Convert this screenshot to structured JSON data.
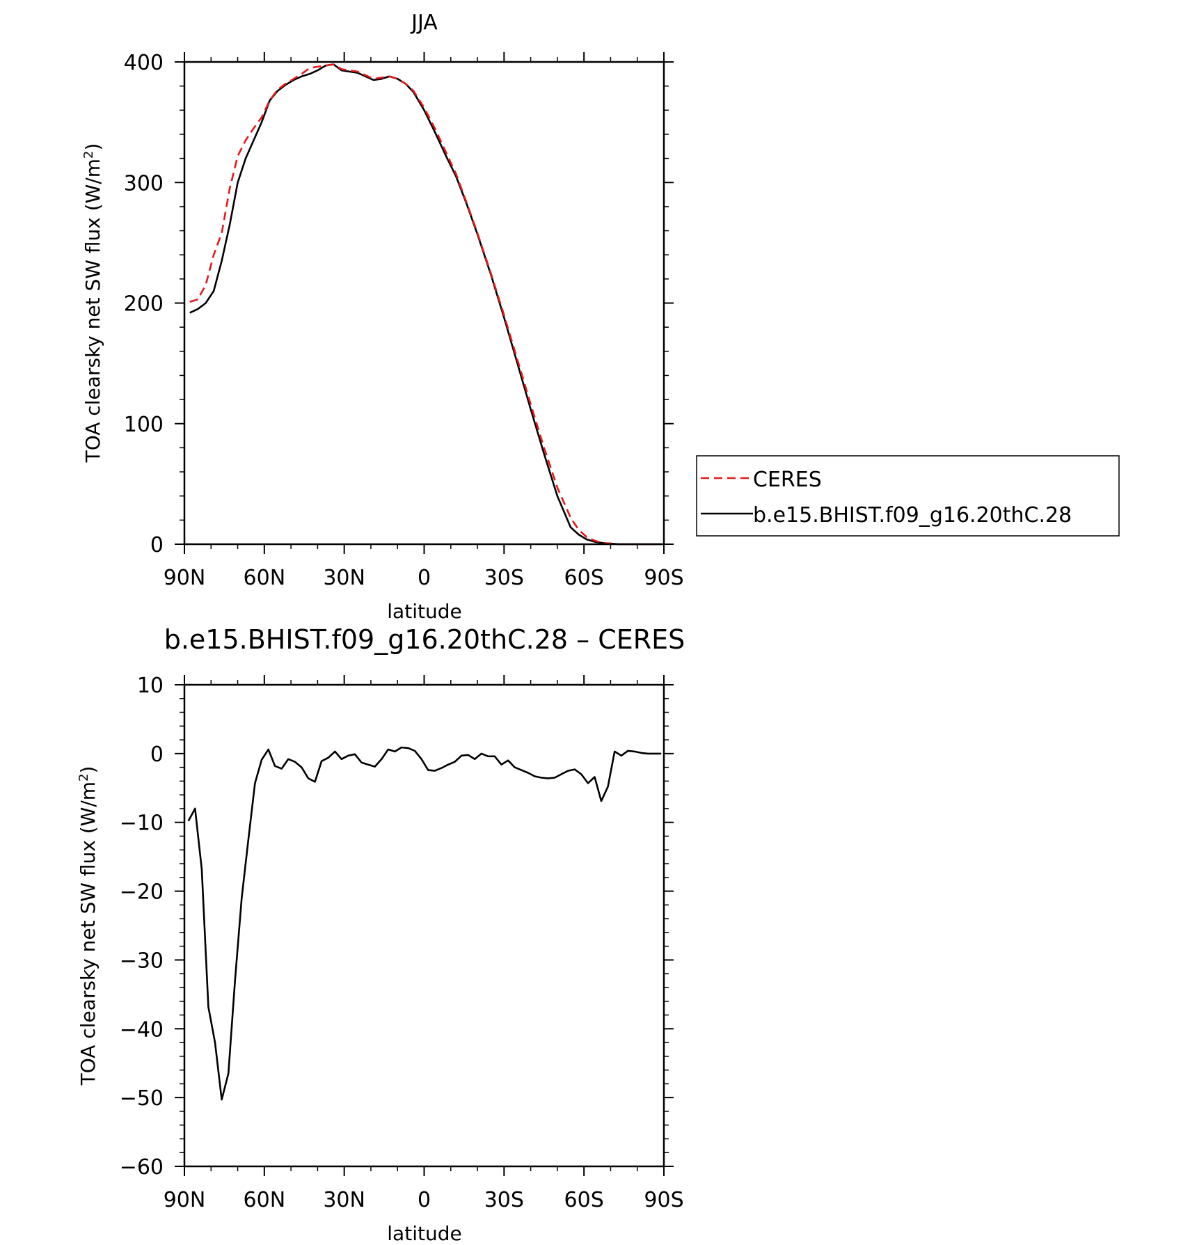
{
  "chart_data": [
    {
      "type": "line",
      "title": "JJA",
      "xlabel": "latitude",
      "ylabel": "TOA clearsky net SW flux (W/m",
      "ylabel_sup": "2",
      "ylabel_close": ")",
      "xlim": [
        -90,
        90
      ],
      "ylim": [
        0,
        400
      ],
      "xticks": [
        {
          "value": -90,
          "label": "90N"
        },
        {
          "value": -60,
          "label": "60N"
        },
        {
          "value": -30,
          "label": "30N"
        },
        {
          "value": 0,
          "label": "0"
        },
        {
          "value": 30,
          "label": "30S"
        },
        {
          "value": 60,
          "label": "60S"
        },
        {
          "value": 90,
          "label": "90S"
        }
      ],
      "yticks": [
        0,
        100,
        200,
        300,
        400
      ],
      "legend_position": "outside-right",
      "series": [
        {
          "name": "CERES",
          "color": "#e41a1c",
          "dash": true,
          "x": [
            -88,
            -85,
            -82,
            -79,
            -76,
            -73,
            -70,
            -67,
            -64,
            -61,
            -58,
            -55,
            -52,
            -49,
            -46,
            -43,
            -40,
            -37,
            -34,
            -31,
            -28,
            -25,
            -22,
            -19,
            -16,
            -13,
            -10,
            -7,
            -4,
            0,
            4,
            8,
            12,
            16,
            20,
            25,
            30,
            35,
            40,
            45,
            50,
            55,
            58,
            61,
            64,
            67,
            70,
            73,
            76,
            80,
            85,
            89
          ],
          "y": [
            201,
            203,
            215,
            240,
            258,
            295,
            322,
            335,
            345,
            354,
            368,
            377,
            382,
            386,
            390,
            395,
            396,
            397,
            398,
            394,
            393,
            392,
            389,
            386,
            387,
            388,
            386,
            382,
            376,
            362,
            345,
            326,
            307,
            283,
            258,
            225,
            190,
            153,
            116,
            80,
            47,
            22,
            12,
            6,
            3,
            1,
            0.5,
            0,
            0,
            0,
            0,
            0
          ]
        },
        {
          "name": "b.e15.BHIST.f09_g16.20thC.28",
          "color": "#000000",
          "dash": false,
          "x": [
            -88,
            -85,
            -82,
            -79,
            -76,
            -73,
            -70,
            -67,
            -64,
            -61,
            -58,
            -55,
            -52,
            -49,
            -46,
            -43,
            -40,
            -37,
            -34,
            -31,
            -28,
            -25,
            -22,
            -19,
            -16,
            -13,
            -10,
            -7,
            -4,
            0,
            4,
            8,
            12,
            16,
            20,
            25,
            30,
            35,
            40,
            45,
            50,
            55,
            58,
            61,
            64,
            67,
            70,
            73,
            76,
            80,
            85,
            89
          ],
          "y": [
            192,
            195,
            200,
            210,
            235,
            265,
            300,
            320,
            335,
            350,
            368,
            376,
            381,
            385,
            388,
            390,
            393,
            397,
            398,
            393,
            392,
            391,
            388,
            385,
            386,
            388,
            386,
            382,
            375,
            360,
            342,
            323,
            305,
            282,
            257,
            224,
            188,
            150,
            112,
            75,
            40,
            14,
            8,
            4,
            2,
            1,
            0.5,
            0,
            0,
            0,
            0,
            0
          ]
        }
      ]
    },
    {
      "type": "line",
      "title": "b.e15.BHIST.f09_g16.20thC.28 – CERES",
      "xlabel": "latitude",
      "ylabel": "TOA clearsky net SW flux (W/m",
      "ylabel_sup": "2",
      "ylabel_close": ")",
      "xlim": [
        -90,
        90
      ],
      "ylim": [
        -60,
        10
      ],
      "xticks": [
        {
          "value": -90,
          "label": "90N"
        },
        {
          "value": -60,
          "label": "60N"
        },
        {
          "value": -30,
          "label": "30N"
        },
        {
          "value": 0,
          "label": "0"
        },
        {
          "value": 30,
          "label": "30S"
        },
        {
          "value": 60,
          "label": "60S"
        },
        {
          "value": 90,
          "label": "90S"
        }
      ],
      "yticks": [
        {
          "value": 10,
          "label": "10"
        },
        {
          "value": 0,
          "label": "0"
        },
        {
          "value": -10,
          "label": "−10"
        },
        {
          "value": -20,
          "label": "−20"
        },
        {
          "value": -30,
          "label": "−30"
        },
        {
          "value": -40,
          "label": "−40"
        },
        {
          "value": -50,
          "label": "−50"
        },
        {
          "value": -60,
          "label": "−60"
        }
      ],
      "series": [
        {
          "color": "#000000",
          "x": [
            -88.5,
            -86,
            -83.5,
            -81,
            -78.5,
            -76,
            -73.5,
            -71,
            -68.5,
            -66,
            -63.5,
            -61,
            -58.5,
            -56,
            -53.5,
            -51,
            -48.5,
            -46,
            -43.5,
            -41,
            -38.5,
            -36,
            -33.5,
            -31,
            -28.5,
            -26,
            -23.5,
            -21,
            -18.5,
            -16,
            -13.5,
            -11,
            -8.5,
            -6,
            -3.5,
            -1,
            1.5,
            4,
            6.5,
            9,
            11.5,
            14,
            16.5,
            19,
            21.5,
            24,
            26.5,
            29,
            31.5,
            34,
            36.5,
            39,
            41.5,
            44,
            46.5,
            49,
            51.5,
            54,
            56.5,
            59,
            61.5,
            64,
            66.5,
            69,
            71.5,
            74,
            76.5,
            79,
            81.5,
            84,
            86.5,
            89
          ],
          "y": [
            -9.8,
            -8.0,
            -16.8,
            -36.8,
            -42.0,
            -50.3,
            -46.5,
            -33.0,
            -21.0,
            -12.5,
            -4.3,
            -0.9,
            0.6,
            -1.8,
            -2.2,
            -0.8,
            -1.2,
            -2.0,
            -3.6,
            -4.1,
            -1.1,
            -0.6,
            0.3,
            -0.8,
            -0.3,
            -0.1,
            -1.3,
            -1.6,
            -1.9,
            -0.8,
            0.6,
            0.3,
            0.9,
            0.8,
            0.4,
            -0.8,
            -2.4,
            -2.5,
            -2.1,
            -1.6,
            -1.2,
            -0.3,
            -0.2,
            -0.8,
            0.0,
            -0.4,
            -0.4,
            -1.6,
            -1.0,
            -2.0,
            -2.4,
            -2.8,
            -3.3,
            -3.5,
            -3.6,
            -3.5,
            -3.0,
            -2.5,
            -2.3,
            -3.0,
            -4.3,
            -3.4,
            -6.9,
            -4.8,
            0.3,
            -0.3,
            0.4,
            0.3,
            0.1,
            0.0,
            0.0,
            0.0
          ]
        }
      ]
    }
  ]
}
